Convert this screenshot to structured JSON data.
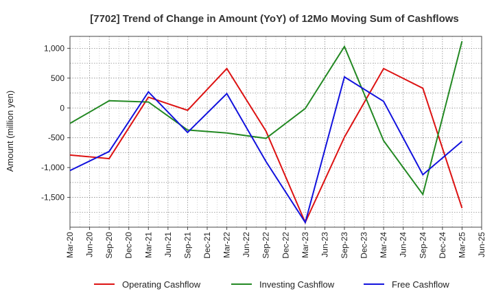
{
  "chart_data": {
    "type": "line",
    "title": "[7702]  Trend of Change in Amount (YoY) of 12Mo Moving Sum of Cashflows",
    "xlabel": "",
    "ylabel": "Amount (million yen)",
    "categories": [
      "Mar-20",
      "Jun-20",
      "Sep-20",
      "Dec-20",
      "Mar-21",
      "Jun-21",
      "Sep-21",
      "Dec-21",
      "Mar-22",
      "Jun-22",
      "Sep-22",
      "Dec-22",
      "Mar-23",
      "Jun-23",
      "Sep-23",
      "Dec-23",
      "Mar-24",
      "Jun-24",
      "Sep-24",
      "Dec-24",
      "Mar-25",
      "Jun-25"
    ],
    "yticks": [
      1000,
      500,
      0,
      -500,
      -1000,
      -1500
    ],
    "ytick_labels": [
      "1,000",
      "500",
      "0",
      "-500",
      "-1,000",
      "-1,500"
    ],
    "ylim": [
      -2000,
      1200
    ],
    "grid": true,
    "legend_position": "bottom",
    "series": [
      {
        "name": "Operating Cashflow",
        "color": "#dd1111",
        "values": [
          -790,
          null,
          -850,
          null,
          180,
          null,
          -40,
          null,
          660,
          null,
          -390,
          null,
          -1920,
          null,
          -490,
          null,
          660,
          null,
          330,
          null,
          -1680,
          null
        ]
      },
      {
        "name": "Investing Cashflow",
        "color": "#228822",
        "values": [
          -260,
          null,
          120,
          null,
          100,
          null,
          -370,
          null,
          -420,
          null,
          -510,
          null,
          -10,
          null,
          1030,
          null,
          -550,
          null,
          -1450,
          null,
          1120,
          null
        ]
      },
      {
        "name": "Free Cashflow",
        "color": "#1111dd",
        "values": [
          -1050,
          null,
          -730,
          null,
          270,
          null,
          -410,
          null,
          240,
          null,
          -900,
          null,
          -1920,
          null,
          520,
          null,
          110,
          null,
          -1120,
          null,
          -560,
          null
        ]
      }
    ]
  }
}
